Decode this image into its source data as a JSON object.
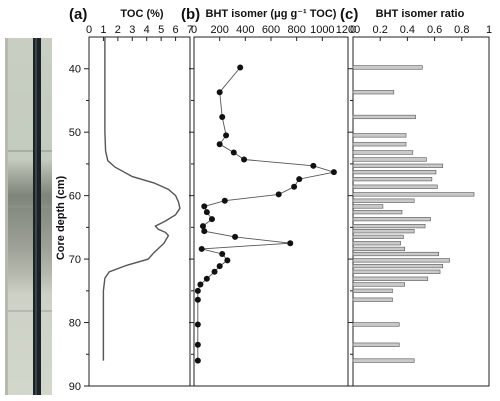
{
  "figure": {
    "panel_letters": [
      "(a)",
      "(b)",
      "(c)"
    ],
    "y_axis_title": "Core depth (cm)"
  },
  "chart_data": [
    {
      "panel": "(a)",
      "type": "line",
      "title": "TOC (%)",
      "xlim": [
        0,
        7
      ],
      "x_ticks": [
        "0",
        "1",
        "2",
        "3",
        "4",
        "5",
        "6",
        "7"
      ],
      "ylabel": "Core depth (cm)",
      "ylim": [
        90,
        35
      ],
      "y_ticks": [
        "40",
        "50",
        "60",
        "70",
        "80",
        "90"
      ],
      "points": [
        [
          1.1,
          35
        ],
        [
          1.1,
          40
        ],
        [
          1.1,
          45
        ],
        [
          1.1,
          50
        ],
        [
          1.15,
          53
        ],
        [
          1.3,
          54.5
        ],
        [
          1.8,
          55.5
        ],
        [
          3.0,
          57
        ],
        [
          4.5,
          58
        ],
        [
          5.5,
          59
        ],
        [
          6.0,
          60
        ],
        [
          6.2,
          61
        ],
        [
          6.3,
          62
        ],
        [
          6.0,
          63
        ],
        [
          5.3,
          64
        ],
        [
          4.6,
          64.8
        ],
        [
          4.8,
          65.3
        ],
        [
          5.3,
          65.8
        ],
        [
          5.5,
          66.3
        ],
        [
          5.2,
          67.5
        ],
        [
          4.5,
          69
        ],
        [
          4.1,
          70
        ],
        [
          2.6,
          71
        ],
        [
          1.4,
          72
        ],
        [
          1.1,
          73
        ],
        [
          1.0,
          75
        ],
        [
          1.0,
          80
        ],
        [
          1.0,
          86
        ]
      ]
    },
    {
      "panel": "(b)",
      "type": "line",
      "title": "BHT isomer (μg g⁻¹ TOC)",
      "xlim": [
        0,
        1200
      ],
      "x_ticks": [
        "0",
        "200",
        "400",
        "600",
        "800",
        "1000",
        "1200"
      ],
      "ylim": [
        90,
        35
      ],
      "points": [
        [
          360,
          39.8
        ],
        [
          200,
          43.7
        ],
        [
          220,
          47.6
        ],
        [
          250,
          50.5
        ],
        [
          200,
          51.9
        ],
        [
          310,
          53.2
        ],
        [
          390,
          54.3
        ],
        [
          930,
          55.3
        ],
        [
          1090,
          56.3
        ],
        [
          820,
          57.4
        ],
        [
          780,
          58.6
        ],
        [
          660,
          59.8
        ],
        [
          240,
          60.8
        ],
        [
          80,
          61.7
        ],
        [
          100,
          62.6
        ],
        [
          140,
          63.7
        ],
        [
          70,
          64.8
        ],
        [
          80,
          65.6
        ],
        [
          320,
          66.5
        ],
        [
          750,
          67.5
        ],
        [
          60,
          68.4
        ],
        [
          220,
          69.2
        ],
        [
          260,
          70.2
        ],
        [
          200,
          71.1
        ],
        [
          160,
          72.0
        ],
        [
          100,
          73.1
        ],
        [
          50,
          74.0
        ],
        [
          30,
          75.0
        ],
        [
          30,
          76.4
        ],
        [
          30,
          80.3
        ],
        [
          30,
          83.5
        ],
        [
          30,
          86.0
        ]
      ]
    },
    {
      "panel": "(c)",
      "type": "bar",
      "title": "BHT isomer ratio",
      "xlim": [
        0,
        1
      ],
      "x_ticks": [
        "0",
        "0.2",
        "0.4",
        "0.6",
        "0.8",
        "1"
      ],
      "ylim": [
        90,
        35
      ],
      "bars": [
        {
          "depth": 39.8,
          "value": 0.51
        },
        {
          "depth": 43.7,
          "value": 0.3
        },
        {
          "depth": 47.6,
          "value": 0.46
        },
        {
          "depth": 50.5,
          "value": 0.39
        },
        {
          "depth": 51.9,
          "value": 0.39
        },
        {
          "depth": 53.2,
          "value": 0.44
        },
        {
          "depth": 54.3,
          "value": 0.54
        },
        {
          "depth": 55.3,
          "value": 0.66
        },
        {
          "depth": 56.3,
          "value": 0.61
        },
        {
          "depth": 57.4,
          "value": 0.58
        },
        {
          "depth": 58.6,
          "value": 0.62
        },
        {
          "depth": 59.8,
          "value": 0.89
        },
        {
          "depth": 60.8,
          "value": 0.45
        },
        {
          "depth": 61.7,
          "value": 0.22
        },
        {
          "depth": 62.6,
          "value": 0.36
        },
        {
          "depth": 63.7,
          "value": 0.57
        },
        {
          "depth": 64.8,
          "value": 0.53
        },
        {
          "depth": 65.6,
          "value": 0.45
        },
        {
          "depth": 66.5,
          "value": 0.37
        },
        {
          "depth": 67.5,
          "value": 0.35
        },
        {
          "depth": 68.4,
          "value": 0.38
        },
        {
          "depth": 69.2,
          "value": 0.63
        },
        {
          "depth": 70.2,
          "value": 0.71
        },
        {
          "depth": 71.1,
          "value": 0.66
        },
        {
          "depth": 72.0,
          "value": 0.64
        },
        {
          "depth": 73.1,
          "value": 0.55
        },
        {
          "depth": 74.0,
          "value": 0.38
        },
        {
          "depth": 75.0,
          "value": 0.29
        },
        {
          "depth": 76.4,
          "value": 0.29
        },
        {
          "depth": 80.3,
          "value": 0.34
        },
        {
          "depth": 83.5,
          "value": 0.34
        },
        {
          "depth": 86.0,
          "value": 0.45
        }
      ]
    }
  ],
  "colors": {
    "core_background": "#c9cfc3",
    "core_rod": "#1c2326",
    "line": "#555555",
    "marker": "#111111",
    "bar_fill": "#c9c9c9",
    "bar_stroke": "#555555"
  }
}
